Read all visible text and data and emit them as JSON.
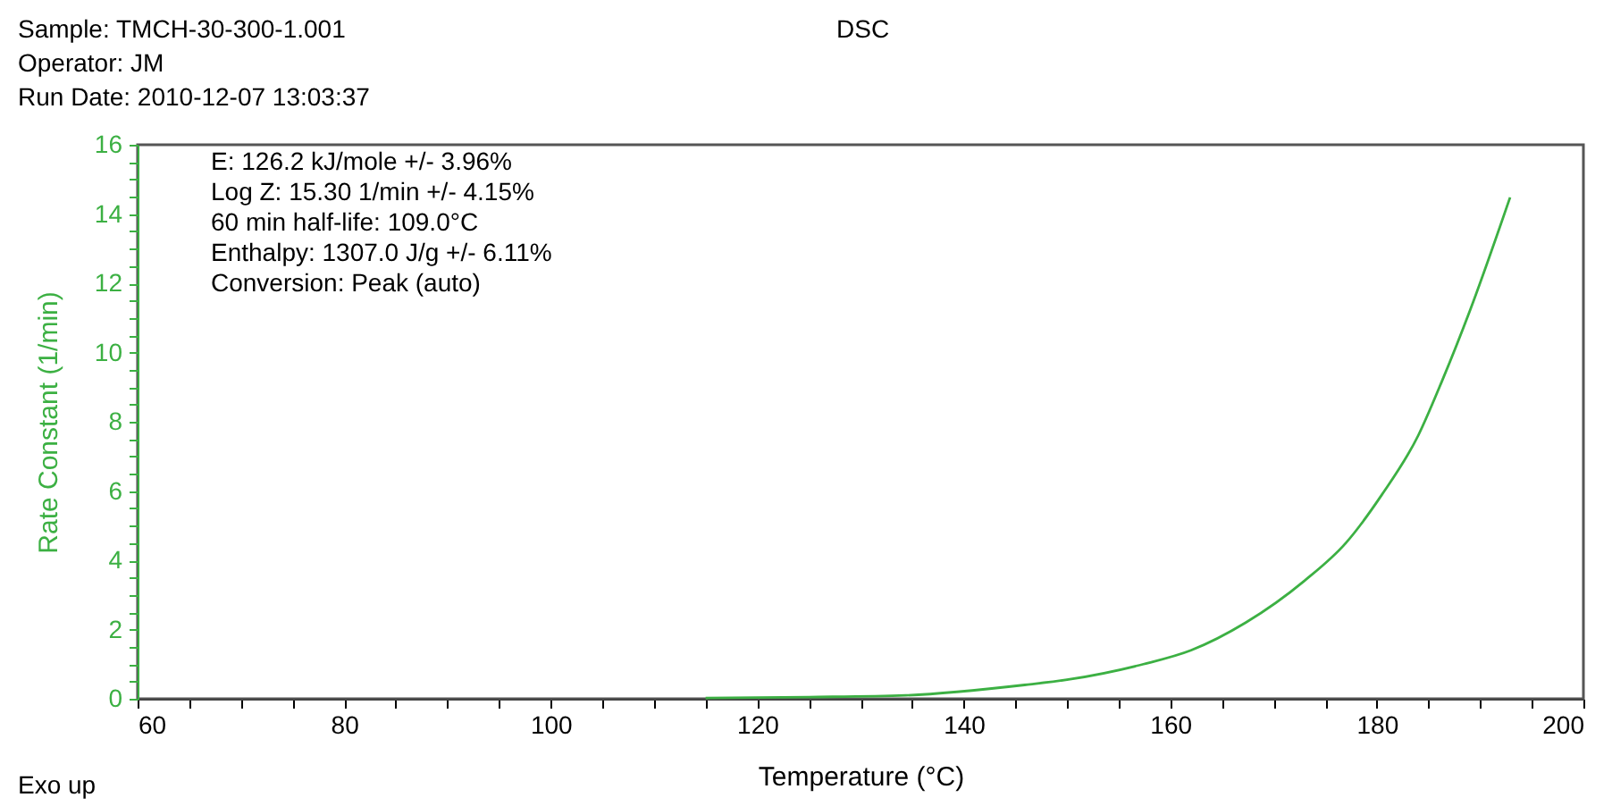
{
  "chart_data": {
    "type": "line",
    "title": "DSC",
    "xlabel": "Temperature (°C)",
    "ylabel": "Rate Constant  (1/min)",
    "annotations": [
      "Sample: TMCH-30-300-1.001",
      "Operator: JM",
      "Run Date: 2010-12-07 13:03:37",
      "E: 126.2 kJ/mole +/- 3.96%",
      "Log Z: 15.30 1/min +/- 4.15%",
      "60 min half-life: 109.0°C",
      "Enthalpy: 1307.0 J/g +/- 6.11%",
      "Conversion: Peak (auto)",
      "Exo up"
    ],
    "x": [
      115,
      125,
      134.4,
      145.9,
      150,
      157.4,
      162,
      167.3,
      173,
      177,
      180.5,
      184,
      186.3,
      189,
      192.9
    ],
    "series": [
      {
        "color": "#3cb043",
        "values": [
          0.02,
          0.05,
          0.1,
          0.4,
          0.55,
          1.0,
          1.4,
          2.2,
          3.41,
          4.5,
          5.9,
          7.6,
          9.17,
          11.2,
          14.48
        ]
      }
    ],
    "xlim": [
      60,
      200
    ],
    "ylim": [
      0,
      16
    ],
    "xticks": [
      60,
      {
        "value": 65,
        "label": null
      },
      {
        "value": 70,
        "label": null
      },
      {
        "value": 75,
        "label": null
      },
      80,
      {
        "value": 85,
        "label": null
      },
      {
        "value": 90,
        "label": null
      },
      {
        "value": 95,
        "label": null
      },
      100,
      {
        "value": 105,
        "label": null
      },
      {
        "value": 110,
        "label": null
      },
      {
        "value": 115,
        "label": null
      },
      120,
      {
        "value": 125,
        "label": null
      },
      {
        "value": 130,
        "label": null
      },
      {
        "value": 135,
        "label": null
      },
      140,
      {
        "value": 145,
        "label": null
      },
      {
        "value": 150,
        "label": null
      },
      {
        "value": 155,
        "label": null
      },
      160,
      {
        "value": 165,
        "label": null
      },
      {
        "value": 170,
        "label": null
      },
      {
        "value": 175,
        "label": null
      },
      180,
      {
        "value": 185,
        "label": null
      },
      {
        "value": 190,
        "label": null
      },
      {
        "value": 195,
        "label": null
      },
      200
    ],
    "yticks": [
      0,
      {
        "value": 0.5,
        "label": null
      },
      {
        "value": 1,
        "label": null
      },
      {
        "value": 1.5,
        "label": null
      },
      2,
      {
        "value": 2.5,
        "label": null
      },
      {
        "value": 3,
        "label": null
      },
      {
        "value": 3.5,
        "label": null
      },
      4,
      {
        "value": 4.5,
        "label": null
      },
      {
        "value": 5,
        "label": null
      },
      {
        "value": 5.5,
        "label": null
      },
      6,
      {
        "value": 6.5,
        "label": null
      },
      {
        "value": 7,
        "label": null
      },
      {
        "value": 7.5,
        "label": null
      },
      8,
      {
        "value": 8.5,
        "label": null
      },
      {
        "value": 9,
        "label": null
      },
      {
        "value": 9.5,
        "label": null
      },
      10,
      {
        "value": 10.5,
        "label": null
      },
      {
        "value": 11,
        "label": null
      },
      {
        "value": 11.5,
        "label": null
      },
      12,
      {
        "value": 12.5,
        "label": null
      },
      {
        "value": 13,
        "label": null
      },
      {
        "value": 13.5,
        "label": null
      },
      14,
      {
        "value": 14.5,
        "label": null
      },
      {
        "value": 15,
        "label": null
      },
      {
        "value": 15.5,
        "label": null
      },
      16
    ],
    "grid": false,
    "marker": "none",
    "line_style": "solid"
  }
}
